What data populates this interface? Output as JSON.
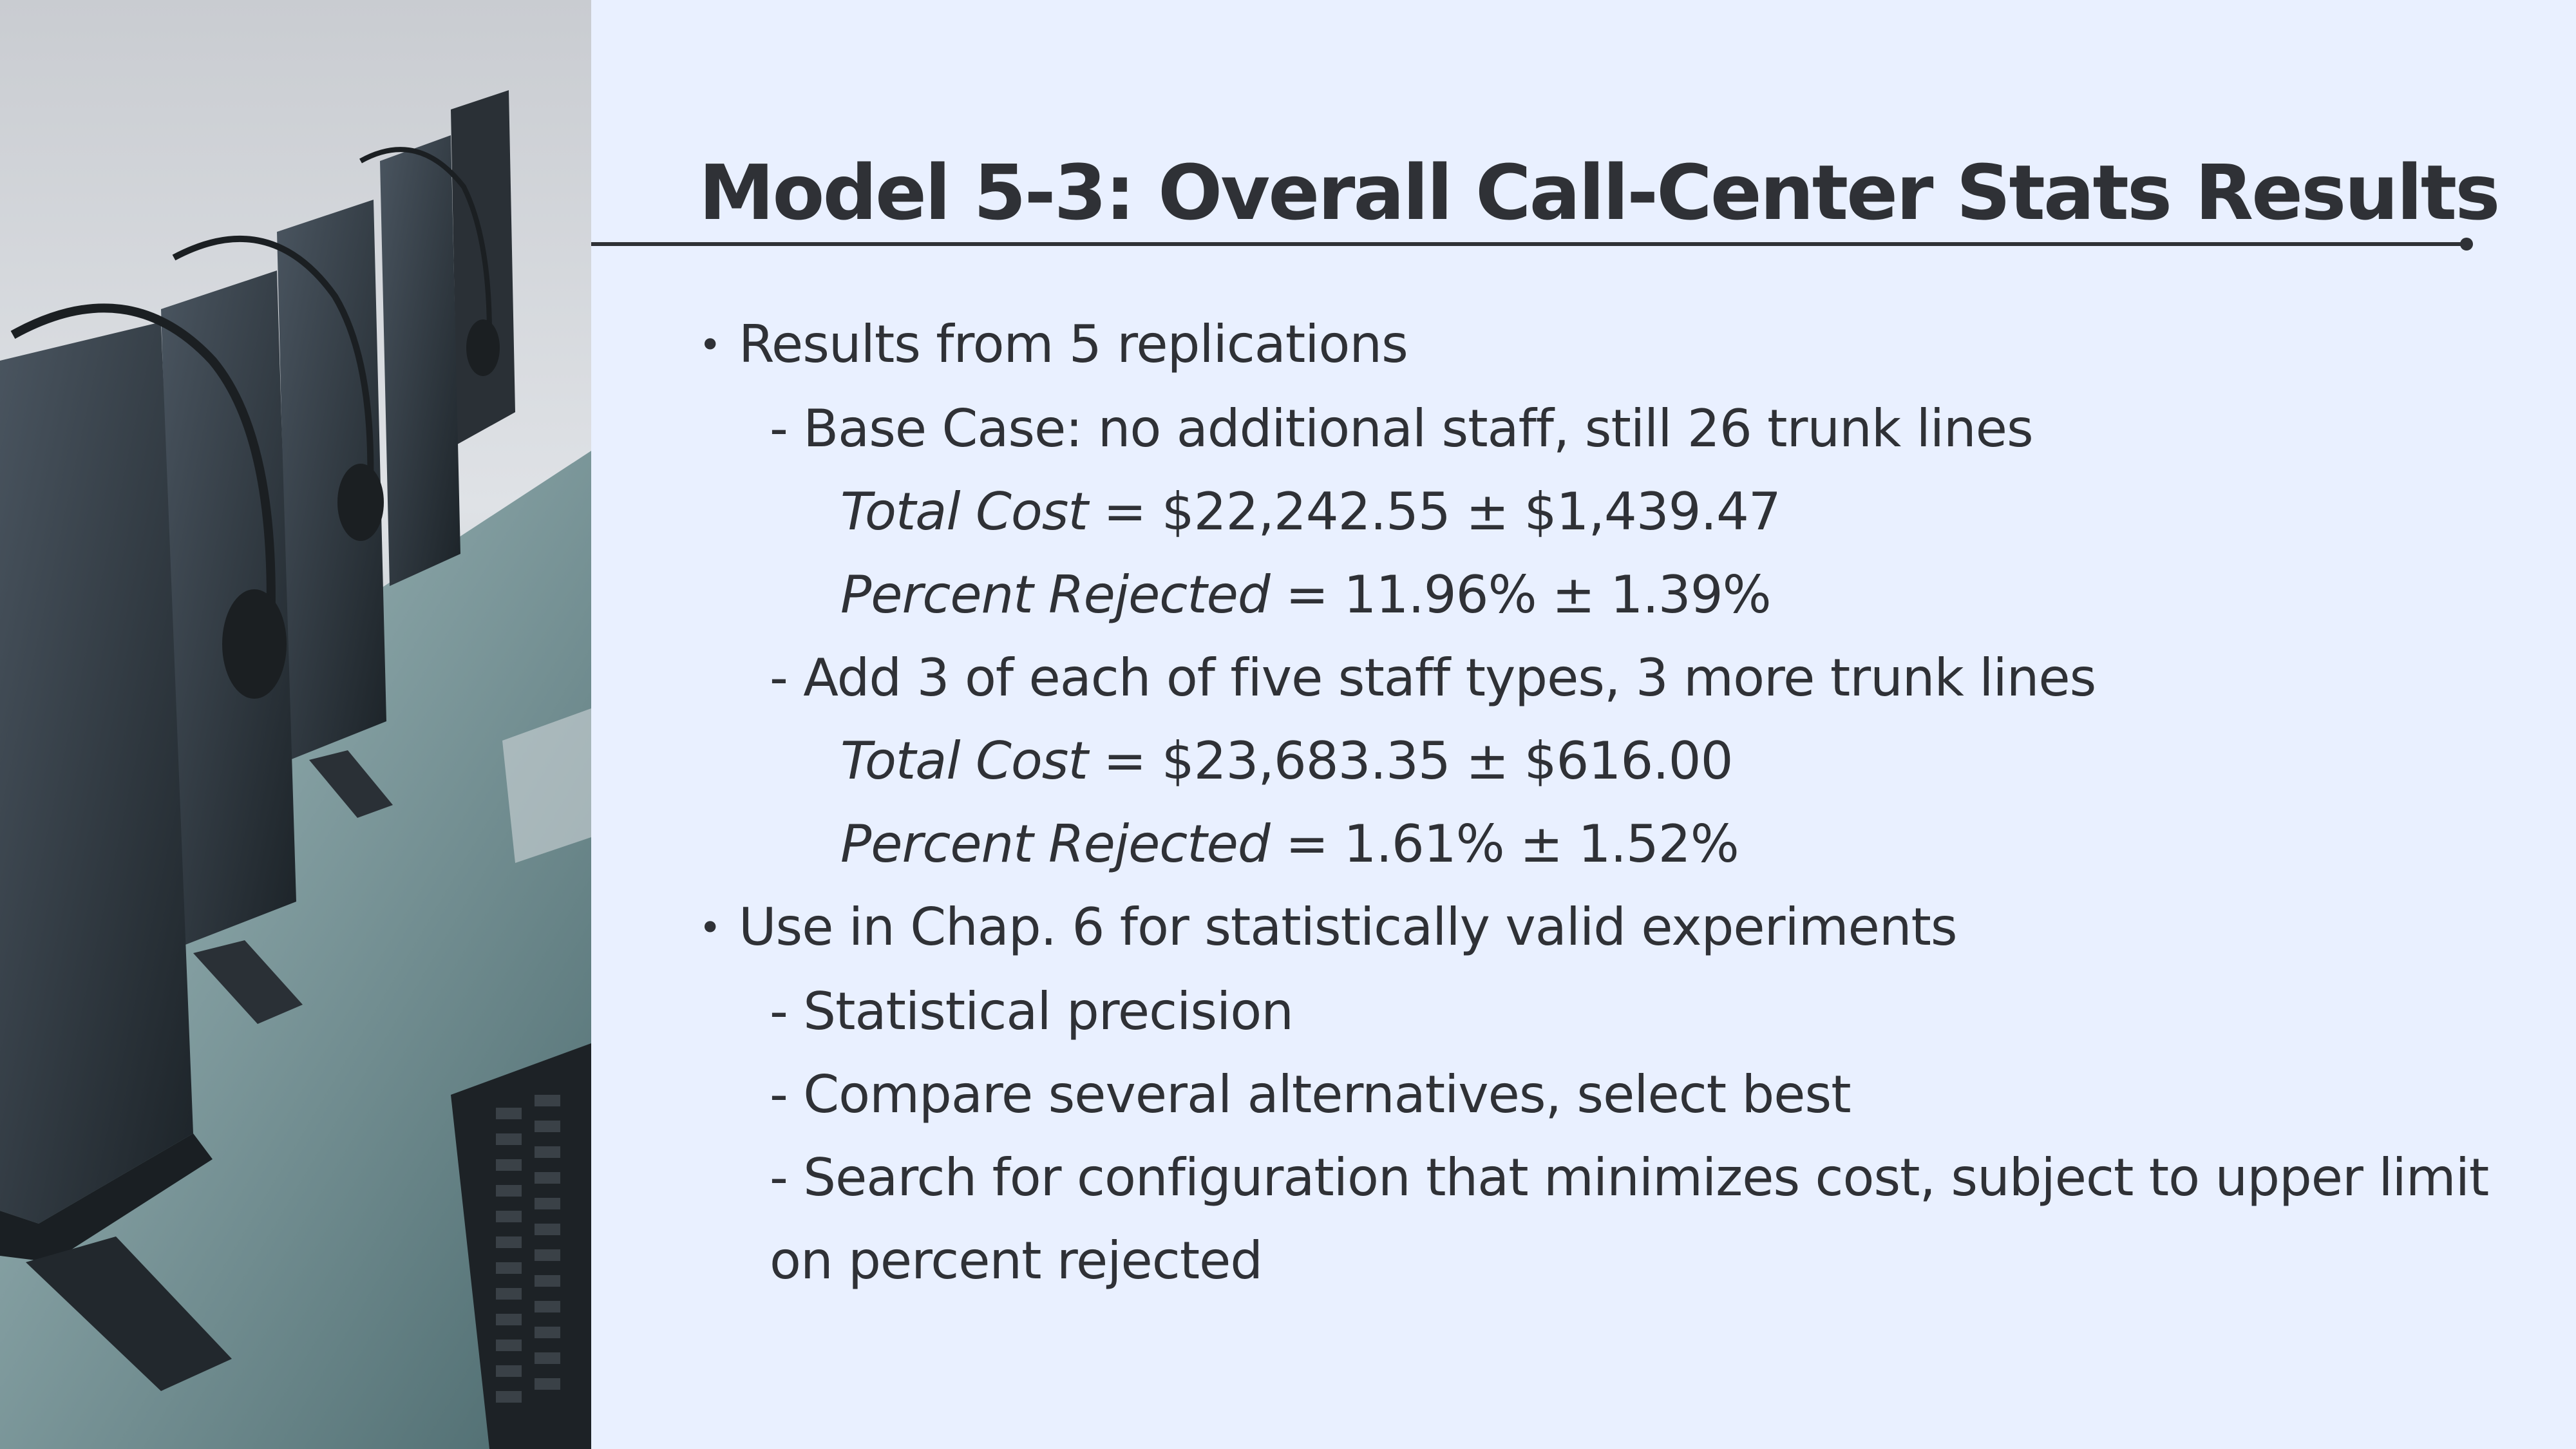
{
  "title": "Model 5-3:  Overall Call-Center Stats Results",
  "photo": {
    "icon": "call-center-headset-monitor-photo"
  },
  "bullets": {
    "b1": "Results from 5 replications",
    "b1_sub1": "- Base Case: no additional staff, still 26 trunk lines",
    "b1_sub1_cost_label": "Total Cost",
    "b1_sub1_cost_value": " = $22,242.55 ± $1,439.47",
    "b1_sub1_rej_label": "Percent Rejected",
    "b1_sub1_rej_value": " = 11.96% ± 1.39%",
    "b1_sub2": "- Add 3 of each of five staff types, 3 more trunk lines",
    "b1_sub2_cost_label": "Total Cost",
    "b1_sub2_cost_value": " = $23,683.35 ± $616.00",
    "b1_sub2_rej_label": "Percent Rejected",
    "b1_sub2_rej_value": " = 1.61% ± 1.52%",
    "b2": "Use in Chap. 6 for statistically valid experiments",
    "b2_sub1": "- Statistical precision",
    "b2_sub2": "- Compare several alternatives, select best",
    "b2_sub3_line1": "- Search for configuration that minimizes cost, subject to upper limit",
    "b2_sub3_line2": "on percent rejected"
  }
}
